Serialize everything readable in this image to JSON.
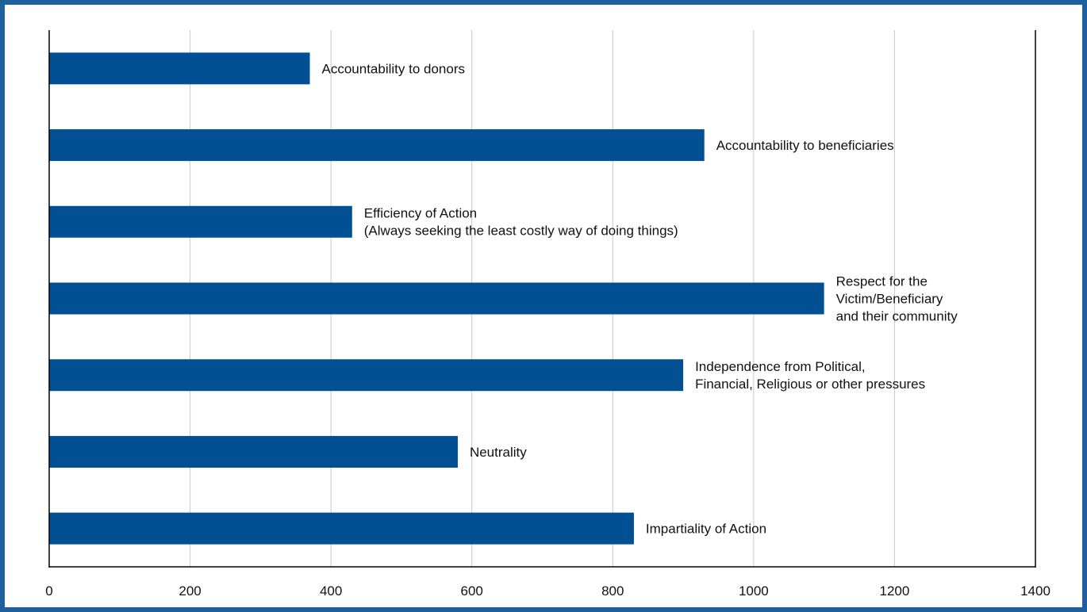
{
  "chart_data": {
    "type": "bar",
    "orientation": "horizontal",
    "title": "",
    "xlabel": "",
    "ylabel": "",
    "xlim": [
      0,
      1400
    ],
    "xticks": [
      0,
      200,
      400,
      600,
      800,
      1000,
      1200,
      1400
    ],
    "grid": "vertical",
    "legend": "none",
    "categories": [
      "Accountability to donors",
      "Accountability to beneficiaries",
      "Efficiency of Action\n(Always seeking the least costly way of doing things)",
      "Respect for the\nVictim/Beneficiary\nand their community",
      "Independence from Political,\nFinancial, Religious or other pressures",
      "Neutrality",
      "Impartiality of Action"
    ],
    "values": [
      370,
      930,
      430,
      1100,
      900,
      580,
      830
    ],
    "colors": {
      "bar": "#005093",
      "grid": "#c8c8c8",
      "axis": "#000000",
      "frame": "#1f5f9e"
    }
  }
}
